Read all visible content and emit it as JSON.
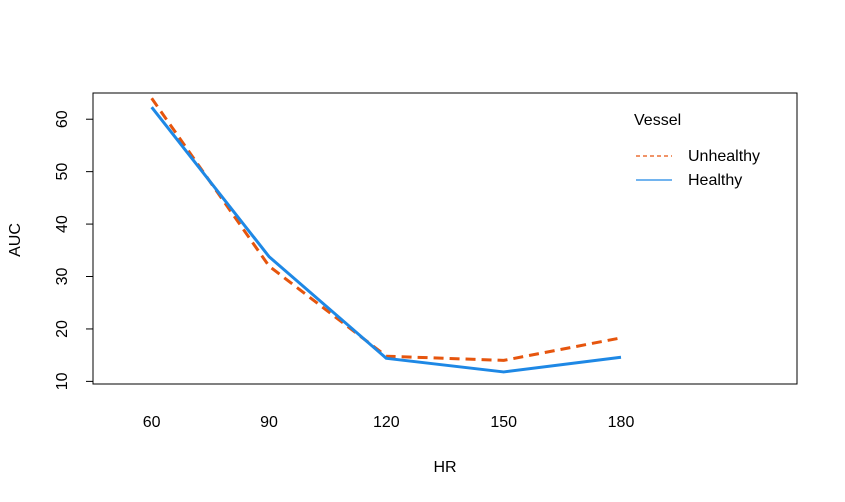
{
  "chart_data": {
    "type": "line",
    "title": "",
    "xlabel": "HR",
    "ylabel": "AUC",
    "x": [
      60,
      90,
      120,
      150,
      180
    ],
    "xlim": [
      45,
      225
    ],
    "ylim": [
      9.5,
      65
    ],
    "yticks": [
      10,
      20,
      30,
      40,
      50,
      60
    ],
    "grid": false,
    "legend": {
      "title": "Vessel",
      "position": "top-right"
    },
    "series": [
      {
        "name": "Unhealthy",
        "values": [
          64.0,
          32.0,
          14.8,
          14.0,
          18.3
        ],
        "color": "#E6550D",
        "style": "dashed"
      },
      {
        "name": "Healthy",
        "values": [
          62.3,
          33.8,
          14.4,
          11.8,
          14.6
        ],
        "color": "#1E88E5",
        "style": "solid"
      }
    ]
  }
}
